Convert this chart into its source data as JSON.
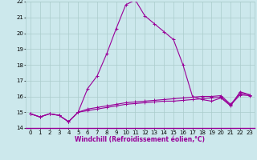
{
  "x": [
    0,
    1,
    2,
    3,
    4,
    5,
    6,
    7,
    8,
    9,
    10,
    11,
    12,
    13,
    14,
    15,
    16,
    17,
    18,
    19,
    20,
    21,
    22,
    23
  ],
  "y_main": [
    14.9,
    14.7,
    14.9,
    14.8,
    14.4,
    15.0,
    16.5,
    17.3,
    18.7,
    20.3,
    21.8,
    22.1,
    21.1,
    20.6,
    20.1,
    19.6,
    18.0,
    16.0,
    15.8,
    15.7,
    15.9,
    15.4,
    16.3,
    16.1
  ],
  "y_extra1": [
    14.9,
    14.7,
    14.9,
    14.8,
    14.4,
    15.0,
    15.2,
    15.3,
    15.4,
    15.5,
    15.6,
    15.65,
    15.7,
    15.75,
    15.8,
    15.85,
    15.9,
    15.95,
    16.0,
    16.0,
    16.05,
    15.5,
    16.2,
    16.1
  ],
  "y_extra2": [
    14.9,
    14.7,
    14.9,
    14.8,
    14.4,
    15.0,
    15.1,
    15.2,
    15.3,
    15.4,
    15.5,
    15.55,
    15.6,
    15.65,
    15.7,
    15.7,
    15.75,
    15.8,
    15.85,
    15.9,
    15.95,
    15.45,
    16.1,
    16.05
  ],
  "line_color": "#990099",
  "bg_color": "#cce8ec",
  "grid_color": "#aacccc",
  "xlabel": "Windchill (Refroidissement éolien,°C)",
  "xlim": [
    -0.5,
    23.5
  ],
  "ylim": [
    14,
    22
  ],
  "yticks": [
    14,
    15,
    16,
    17,
    18,
    19,
    20,
    21,
    22
  ],
  "xticks": [
    0,
    1,
    2,
    3,
    4,
    5,
    6,
    7,
    8,
    9,
    10,
    11,
    12,
    13,
    14,
    15,
    16,
    17,
    18,
    19,
    20,
    21,
    22,
    23
  ],
  "marker": "+",
  "markersize": 3,
  "linewidth": 0.8,
  "label_fontsize": 5.5,
  "tick_fontsize": 5.0
}
